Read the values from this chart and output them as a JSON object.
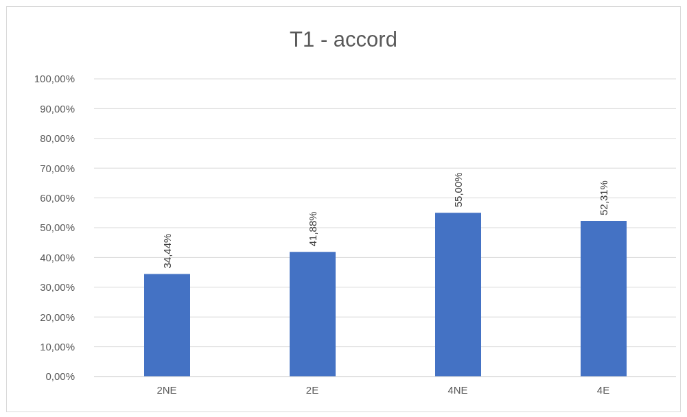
{
  "chart_data": {
    "type": "bar",
    "title": "T1 - accord",
    "categories": [
      "2NE",
      "2E",
      "4NE",
      "4E"
    ],
    "values": [
      34.44,
      41.88,
      55.0,
      52.31
    ],
    "value_labels": [
      "34,44%",
      "41,88%",
      "55,00%",
      "52,31%"
    ],
    "color": "#4472c4",
    "ylim": [
      0,
      100
    ],
    "yticks": [
      {
        "value": 0,
        "label": "0,00%"
      },
      {
        "value": 10,
        "label": "10,00%"
      },
      {
        "value": 20,
        "label": "20,00%"
      },
      {
        "value": 30,
        "label": "30,00%"
      },
      {
        "value": 40,
        "label": "40,00%"
      },
      {
        "value": 50,
        "label": "50,00%"
      },
      {
        "value": 60,
        "label": "60,00%"
      },
      {
        "value": 70,
        "label": "70,00%"
      },
      {
        "value": 80,
        "label": "80,00%"
      },
      {
        "value": 90,
        "label": "90,00%"
      },
      {
        "value": 100,
        "label": "100,00%"
      }
    ],
    "grid": "y"
  }
}
